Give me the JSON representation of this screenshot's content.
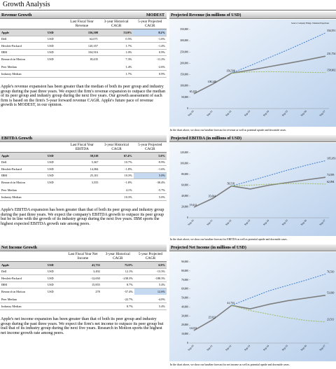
{
  "title": "Growth Analysis",
  "sections": [
    {
      "heading": "Revenue Growth",
      "rating": "MODEST",
      "table": {
        "columns": [
          "Last Fiscal Year Revenue",
          "3-year Historical CAGR",
          "5-year Projected CAGR"
        ],
        "rows": [
          [
            "Apple",
            "USD",
            "156,508",
            "53.9%",
            "8.2%"
          ],
          [
            "Dell",
            "USD",
            "62,071",
            "0.5%",
            "-1.6%"
          ],
          [
            "Hewlett-Packard",
            "USD",
            "120,357",
            "1.7%",
            "-1.4%"
          ],
          [
            "IBM",
            "USD",
            "104,916",
            "1.0%",
            "0.9%"
          ],
          [
            "Research in Motion",
            "USD",
            "18,435",
            "7.3%",
            "-11.2%"
          ],
          [
            "Peer Median",
            null,
            null,
            "1.4%",
            "-2.6%"
          ],
          [
            "Industry Median",
            null,
            null,
            "1.7%",
            "0.9%"
          ]
        ],
        "highlighted_cell": [
          0,
          4
        ]
      },
      "text": "Apple's revenue expansion has been greater than the median of both its peer group and industry group during the past three years. We expect the firm's revenue expansion to outpace the median of its peer group and industry group during the next five years. Our growth assessment of each firm is based on the firm's 5-year forward revenue CAGR. Apple's future pace of revenue growth is MODEST, in our opinion.",
      "chart": {
        "type": "line",
        "title": "Projected Revenue (in millions of USD)",
        "source": "Source: Company Filings, Valuation Projections",
        "x": [
          "Sep-10",
          "Sep-11",
          "Sep-12",
          "Sep-13",
          "Sep-14",
          "Sep-15",
          "Sep-16",
          "Sep-17"
        ],
        "ylim": [
          0,
          350000
        ],
        "yticks": [
          0,
          {
            "value": 50000,
            "label": "50,000"
          },
          {
            "value": 100000,
            "label": "100,000"
          },
          {
            "value": 150000,
            "label": "150,000"
          },
          {
            "value": 200000,
            "label": "200,000"
          },
          {
            "value": 250000,
            "label": "250,000"
          },
          {
            "value": 300000,
            "label": "300,000"
          },
          {
            "value": 350000,
            "label": "350,000"
          }
        ],
        "series": [
          {
            "color": "#7f7f7f",
            "dash": false,
            "values": [
              65225,
              108249,
              156508,
              170000,
              185000,
              200000,
              215000,
              231754
            ],
            "value_labels": [
              "65,225",
              "108,249",
              "156,508",
              null,
              null,
              null,
              null,
              "231,754"
            ]
          },
          {
            "color": "#3f7fd0",
            "dash": true,
            "values": [
              null,
              null,
              156508,
              190000,
              225000,
              260000,
              297000,
              334551
            ],
            "value_labels": [
              null,
              null,
              null,
              null,
              null,
              null,
              null,
              "334,551"
            ]
          },
          {
            "color": "#9bbb59",
            "dash": true,
            "values": [
              null,
              null,
              156508,
              162000,
              163000,
              162000,
              160000,
              158902
            ],
            "value_labels": [
              null,
              null,
              null,
              null,
              null,
              null,
              null,
              "158,902"
            ]
          }
        ],
        "caption": "In the chart above, we show our baseline forecast for revenue as well as potential upside and downside cases."
      }
    },
    {
      "heading": "EBITDA Growth",
      "table": {
        "columns": [
          "Last Fiscal Year EBITDA",
          "3-year Historical CAGR",
          "5-year Projected CAGR"
        ],
        "rows": [
          [
            "Apple",
            "USD",
            "58,518",
            "67.4%",
            "5.0%"
          ],
          [
            "Dell",
            "USD",
            "5,367",
            "10.7%",
            "-9.9%"
          ],
          [
            "Hewlett-Packard",
            "USD",
            "14,384",
            "-1.8%",
            "-1.6%"
          ],
          [
            "IBM",
            "USD",
            "25,101",
            "10.3%",
            "5.0%"
          ],
          [
            "Research in Motion",
            "USD",
            "3,555",
            "-1.8%",
            "-30.4%"
          ],
          [
            "Peer Median",
            null,
            null,
            "4.1%",
            "-5.7%"
          ],
          [
            "Industry Median",
            null,
            null,
            "10.3%",
            "5.0%"
          ]
        ],
        "highlighted_cell": [
          3,
          4
        ]
      },
      "text": "Apple's EBITDA expansion has been greater than that of both its peer group and industry group during the past three years. We expect the company's EBITDA growth to outpace its peer group but be in line with the growth of its industry group during the next five years. IBM sports the highest expected EBITDA growth rate among peers.",
      "chart": {
        "type": "line",
        "title": "Projected EBITDA (in millions of USD)",
        "x": [
          "Sep-10",
          "Sep-11",
          "Sep-12",
          "Sep-13",
          "Sep-14",
          "Sep-15",
          "Sep-16",
          "Sep-17"
        ],
        "ylim": [
          0,
          120000
        ],
        "yticks": [
          0,
          {
            "value": 20000,
            "label": "20,000"
          },
          {
            "value": 40000,
            "label": "40,000"
          },
          {
            "value": 60000,
            "label": "60,000"
          },
          {
            "value": 80000,
            "label": "80,000"
          },
          {
            "value": 100000,
            "label": "100,000"
          },
          {
            "value": 120000,
            "label": "120,000"
          }
        ],
        "series": [
          {
            "color": "#7f7f7f",
            "dash": false,
            "values": [
              19412,
              35604,
              58518,
              53000,
              60000,
              65000,
              70000,
              74595
            ],
            "value_labels": [
              "19,412",
              "35,604",
              "58,518",
              null,
              null,
              null,
              null,
              "74,595"
            ]
          },
          {
            "color": "#3f7fd0",
            "dash": true,
            "values": [
              null,
              null,
              58518,
              68000,
              78000,
              88000,
              97000,
              105183
            ],
            "value_labels": [
              null,
              null,
              null,
              null,
              null,
              null,
              null,
              "105,183"
            ]
          },
          {
            "color": "#9bbb59",
            "dash": true,
            "values": [
              null,
              null,
              58518,
              60000,
              62000,
              63000,
              63000,
              62094
            ],
            "value_labels": [
              null,
              null,
              null,
              null,
              null,
              null,
              null,
              "62,094"
            ]
          }
        ],
        "caption": "In the chart above, we show our baseline forecast for EBITDA as well as potential upside and downside cases."
      }
    },
    {
      "heading": "Net Income Growth",
      "table": {
        "columns": [
          "Last Fiscal Year Net Income",
          "3-year Historical CAGR",
          "5-year Projected CAGR"
        ],
        "rows": [
          [
            "Apple",
            "USD",
            "41,733",
            "73.8%",
            "6.9%"
          ],
          [
            "Dell",
            "USD",
            "3,492",
            "12.1%",
            "-13.3%"
          ],
          [
            "Hewlett-Packard",
            "USD",
            "-12,650",
            "-238.3%",
            "-188.3%"
          ],
          [
            "IBM",
            "USD",
            "15,855",
            "8.7%",
            "5.4%"
          ],
          [
            "Research in Motion",
            "USD",
            "278",
            "-57.4%",
            "12.6%"
          ],
          [
            "Peer Median",
            null,
            null,
            "-22.7%",
            "-4.0%"
          ],
          [
            "Industry Median",
            null,
            null,
            "8.7%",
            "5.4%"
          ]
        ],
        "highlighted_cell": [
          4,
          4
        ]
      },
      "text": "Apple's net income expansion has been greater than that of both its peer group and industry group during the past three years. We expect the firm's net income to outpace its peer group but trail that of its industry group during the next five years. Research in Motion sports the highest net income growth rate among peers.",
      "chart": {
        "type": "line",
        "title": "Projected Net Income (in millions of USD)",
        "x": [
          "Sep-10",
          "Sep-11",
          "Sep-12",
          "Sep-13",
          "Sep-14",
          "Sep-15",
          "Sep-16",
          "Sep-17"
        ],
        "ylim": [
          0,
          90000
        ],
        "yticks": [
          0,
          {
            "value": 10000,
            "label": "10,000"
          },
          {
            "value": 20000,
            "label": "20,000"
          },
          {
            "value": 30000,
            "label": "30,000"
          },
          {
            "value": 40000,
            "label": "40,000"
          },
          {
            "value": 50000,
            "label": "50,000"
          },
          {
            "value": 60000,
            "label": "60,000"
          },
          {
            "value": 70000,
            "label": "70,000"
          },
          {
            "value": 80000,
            "label": "80,000"
          },
          {
            "value": 90000,
            "label": "90,000"
          }
        ],
        "series": [
          {
            "color": "#7f7f7f",
            "dash": false,
            "values": [
              14013,
              25922,
              41733,
              38000,
              43000,
              47000,
              50000,
              53030
            ],
            "value_labels": [
              "14,013",
              "25,922",
              "41,733",
              null,
              null,
              null,
              null,
              "53,030"
            ]
          },
          {
            "color": "#3f7fd0",
            "dash": true,
            "values": [
              null,
              null,
              41733,
              50000,
              58000,
              64000,
              70000,
              76510
            ],
            "value_labels": [
              null,
              null,
              null,
              null,
              null,
              null,
              null,
              "76,510"
            ]
          },
          {
            "color": "#9bbb59",
            "dash": true,
            "values": [
              null,
              null,
              41733,
              36000,
              32000,
              28000,
              25000,
              23511
            ],
            "value_labels": [
              null,
              null,
              null,
              null,
              null,
              null,
              null,
              "23,511"
            ]
          }
        ],
        "caption": "In the chart above, we show our baseline forecast for net income as well as potential upside and downside cases."
      }
    }
  ]
}
